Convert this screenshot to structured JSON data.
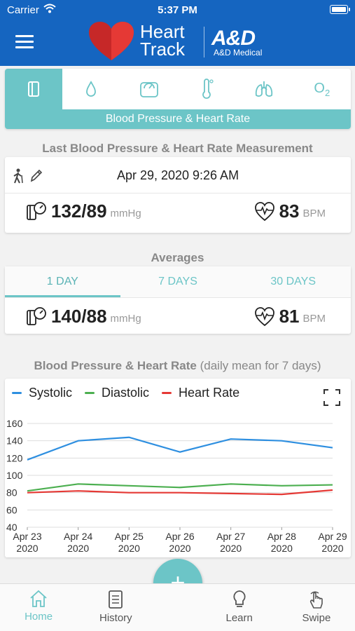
{
  "status": {
    "carrier": "Carrier",
    "time": "5:37 PM"
  },
  "header": {
    "logo_line1": "Heart",
    "logo_line2": "Track",
    "brand": "A&D",
    "brand_sub": "A&D Medical"
  },
  "categories": {
    "items": [
      "blood-pressure",
      "glucose",
      "weight",
      "temperature",
      "lungs",
      "oxygen"
    ],
    "oxygen_label": "O",
    "oxygen_sub": "2",
    "active_label": "Blood Pressure & Heart Rate"
  },
  "last": {
    "title": "Last Blood Pressure & Heart Rate Measurement",
    "datetime": "Apr 29, 2020 9:26 AM",
    "bp": "132/89",
    "bp_unit": "mmHg",
    "hr": "83",
    "hr_unit": "BPM"
  },
  "averages": {
    "title": "Averages",
    "tabs": [
      "1 DAY",
      "7 DAYS",
      "30 DAYS"
    ],
    "active_tab": 0,
    "bp": "140/88",
    "bp_unit": "mmHg",
    "hr": "81",
    "hr_unit": "BPM"
  },
  "chart_title": {
    "main": "Blood Pressure & Heart Rate",
    "sub": "(daily mean for 7 days)"
  },
  "chart_data": {
    "type": "line",
    "x": [
      "Apr 23 2020",
      "Apr 24 2020",
      "Apr 25 2020",
      "Apr 26 2020",
      "Apr 27 2020",
      "Apr 28 2020",
      "Apr 29 2020"
    ],
    "x_ticks": [
      [
        "Apr 23",
        "2020"
      ],
      [
        "Apr 24",
        "2020"
      ],
      [
        "Apr 25",
        "2020"
      ],
      [
        "Apr 26",
        "2020"
      ],
      [
        "Apr 27",
        "2020"
      ],
      [
        "Apr 28",
        "2020"
      ],
      [
        "Apr 29",
        "2020"
      ]
    ],
    "y_ticks": [
      "40",
      "60",
      "80",
      "100",
      "120",
      "140",
      "160"
    ],
    "ylim": [
      40,
      160
    ],
    "grid": true,
    "legend": "top-left",
    "series": [
      {
        "name": "Systolic",
        "color": "#2e8fe0",
        "values": [
          118,
          140,
          144,
          127,
          142,
          140,
          132
        ]
      },
      {
        "name": "Diastolic",
        "color": "#4caf50",
        "values": [
          82,
          90,
          88,
          86,
          90,
          88,
          89
        ]
      },
      {
        "name": "Heart Rate",
        "color": "#e53935",
        "values": [
          80,
          82,
          80,
          80,
          79,
          78,
          83
        ]
      }
    ]
  },
  "nav": {
    "items": [
      "Home",
      "History",
      "Learn",
      "Swipe"
    ],
    "active": 0,
    "fab": "+"
  }
}
